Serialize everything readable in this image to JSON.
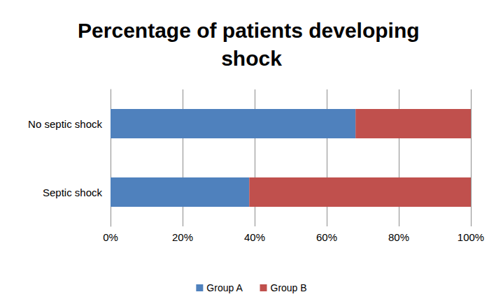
{
  "chart_data": {
    "type": "bar",
    "title": "Percentage of patients developing shock",
    "orientation": "horizontal",
    "stacked": true,
    "categories": [
      "No septic shock",
      "Septic shock"
    ],
    "series": [
      {
        "name": "Group A",
        "color": "#4f81bd",
        "values": [
          68,
          38.5
        ]
      },
      {
        "name": "Group B",
        "color": "#c0504d",
        "values": [
          32,
          61.5
        ]
      }
    ],
    "xlim": [
      0,
      100
    ],
    "xticks": [
      {
        "value": 0,
        "label": "0%"
      },
      {
        "value": 20,
        "label": "20%"
      },
      {
        "value": 40,
        "label": "40%"
      },
      {
        "value": 60,
        "label": "60%"
      },
      {
        "value": 80,
        "label": "80%"
      },
      {
        "value": 100,
        "label": "100%"
      }
    ],
    "grid": true,
    "legend": "bottom"
  }
}
